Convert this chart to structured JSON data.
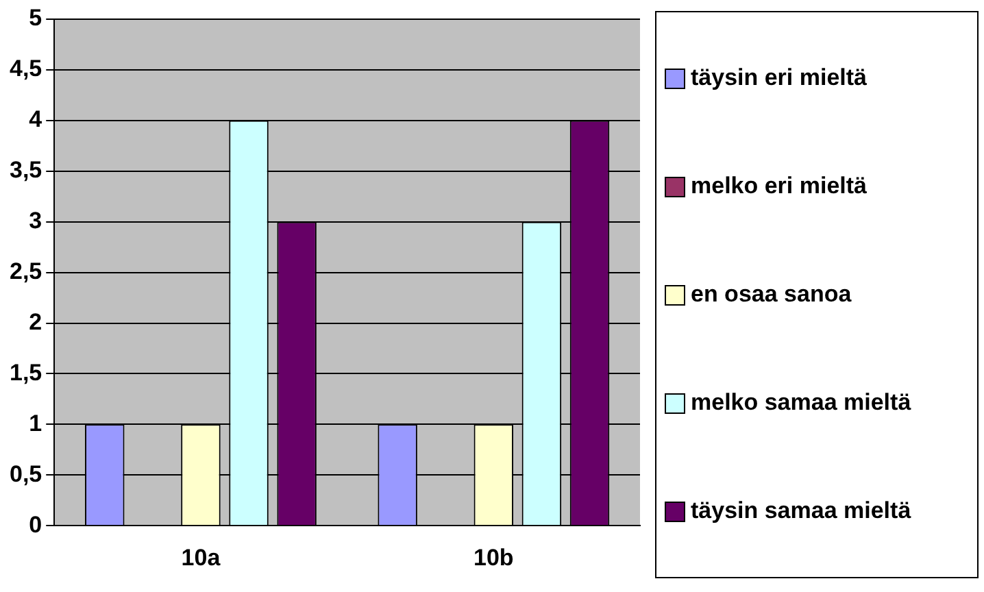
{
  "chart_data": {
    "type": "bar",
    "categories": [
      "10a",
      "10b"
    ],
    "series": [
      {
        "name": "täysin eri mieltä",
        "color": "#9999ff",
        "values": [
          1,
          1
        ]
      },
      {
        "name": "melko eri mieltä",
        "color": "#993366",
        "values": [
          0,
          0
        ]
      },
      {
        "name": "en osaa sanoa",
        "color": "#ffffcc",
        "values": [
          1,
          1
        ]
      },
      {
        "name": "melko samaa mieltä",
        "color": "#ccffff",
        "values": [
          4,
          3
        ]
      },
      {
        "name": "täysin samaa mieltä",
        "color": "#660066",
        "values": [
          3,
          4
        ]
      }
    ],
    "ylim": [
      0,
      5
    ],
    "yticks": [
      0,
      {
        "value": 0.5,
        "label": "0,5"
      },
      1,
      {
        "value": 1.5,
        "label": "1,5"
      },
      2,
      {
        "value": 2.5,
        "label": "2,5"
      },
      3,
      {
        "value": 3.5,
        "label": "3,5"
      },
      4,
      {
        "value": 4.5,
        "label": "4,5"
      },
      5
    ],
    "grid": "y",
    "legend": "right"
  }
}
